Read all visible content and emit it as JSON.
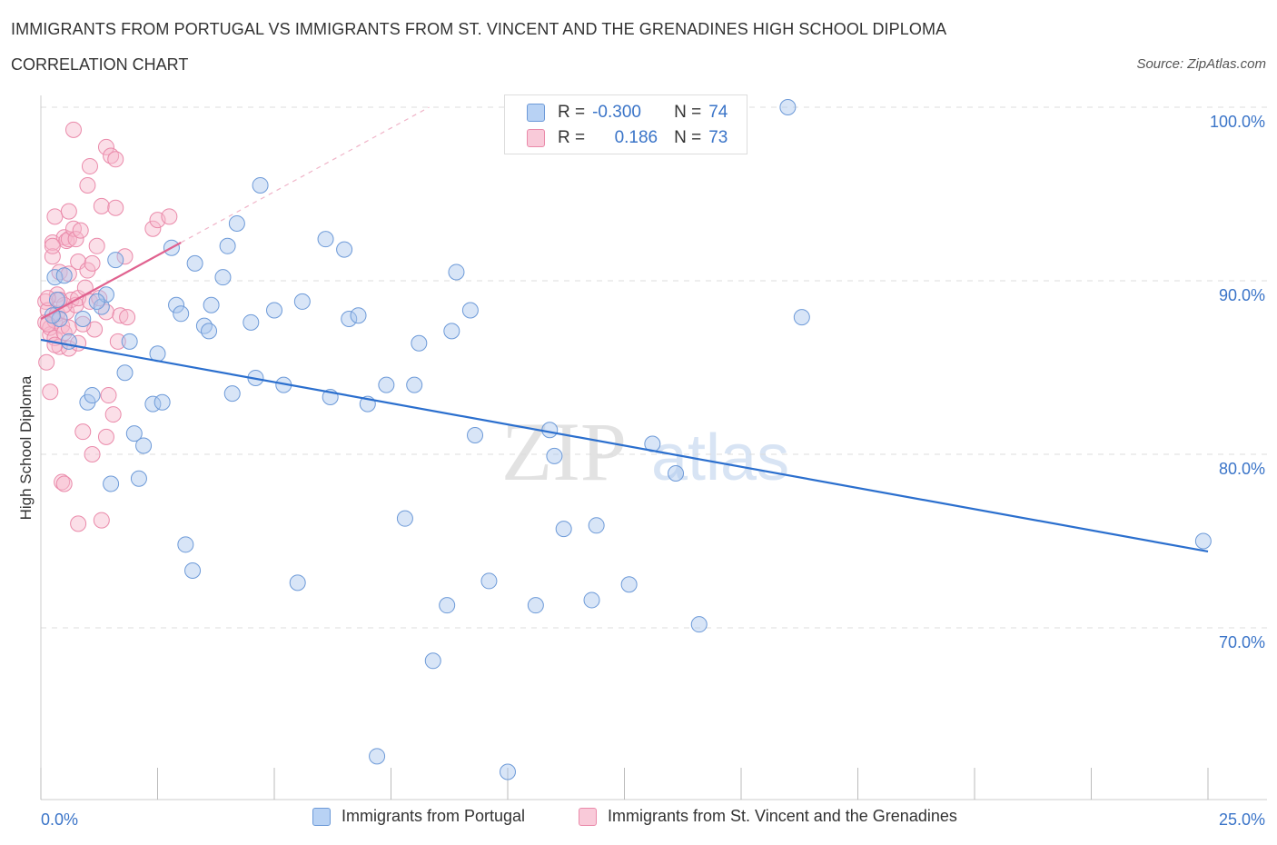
{
  "header": {
    "title": "IMMIGRANTS FROM PORTUGAL VS IMMIGRANTS FROM ST. VINCENT AND THE GRENADINES HIGH SCHOOL DIPLOMA",
    "subtitle": "CORRELATION CHART",
    "source": "Source: ZipAtlas.com"
  },
  "legend": {
    "rows": [
      {
        "r_label": "R =",
        "r_value": "-0.300",
        "n_label": "N =",
        "n_value": "74"
      },
      {
        "r_label": "R =",
        "r_value": "0.186",
        "n_label": "N =",
        "n_value": "73"
      }
    ]
  },
  "bottom_legend": {
    "series1": "Immigrants from Portugal",
    "series2": "Immigrants from St. Vincent and the Grenadines"
  },
  "watermark": {
    "part1": "ZIP",
    "part2": "atlas"
  },
  "colors": {
    "blue_fill": "#a9c6ee",
    "blue_stroke": "#6d9ad8",
    "blue_line": "#2b6fce",
    "pink_fill": "#f6b9cc",
    "pink_stroke": "#ea8aaa",
    "pink_line": "#e0628f",
    "label_blue": "#3a74c8"
  },
  "chart_data": {
    "type": "scatter",
    "xlabel": "",
    "ylabel": "High School Diploma",
    "xlim": [
      0,
      25
    ],
    "ylim": [
      60,
      100
    ],
    "x_tick_labels": [
      "0.0%",
      "25.0%"
    ],
    "y_ticks": [
      70,
      80,
      90,
      100
    ],
    "y_tick_labels": [
      "70.0%",
      "80.0%",
      "90.0%",
      "100.0%"
    ],
    "grid": true,
    "series": [
      {
        "name": "Immigrants from Portugal",
        "color": "#a9c6ee",
        "trend": {
          "x": [
            0,
            25
          ],
          "y": [
            86.6,
            74.4
          ]
        },
        "points": [
          [
            0.3,
            90.2
          ],
          [
            0.35,
            88.9
          ],
          [
            0.4,
            87.8
          ],
          [
            0.9,
            87.8
          ],
          [
            0.5,
            90.3
          ],
          [
            1.0,
            83.0
          ],
          [
            1.1,
            83.4
          ],
          [
            1.3,
            88.5
          ],
          [
            1.4,
            89.2
          ],
          [
            1.6,
            91.2
          ],
          [
            1.8,
            84.7
          ],
          [
            1.9,
            86.5
          ],
          [
            2.0,
            81.2
          ],
          [
            2.1,
            78.6
          ],
          [
            2.2,
            80.5
          ],
          [
            2.4,
            82.9
          ],
          [
            2.5,
            85.8
          ],
          [
            2.6,
            83.0
          ],
          [
            2.8,
            91.9
          ],
          [
            2.9,
            88.6
          ],
          [
            3.0,
            88.1
          ],
          [
            3.1,
            74.8
          ],
          [
            3.25,
            73.3
          ],
          [
            3.3,
            91.0
          ],
          [
            3.5,
            87.4
          ],
          [
            3.6,
            87.1
          ],
          [
            3.65,
            88.6
          ],
          [
            3.9,
            90.2
          ],
          [
            4.0,
            92.0
          ],
          [
            4.1,
            83.5
          ],
          [
            4.2,
            93.3
          ],
          [
            4.5,
            87.6
          ],
          [
            4.6,
            84.4
          ],
          [
            4.7,
            95.5
          ],
          [
            5.0,
            88.3
          ],
          [
            5.2,
            84.0
          ],
          [
            5.5,
            72.6
          ],
          [
            5.6,
            88.8
          ],
          [
            6.1,
            92.4
          ],
          [
            6.2,
            83.3
          ],
          [
            6.5,
            91.8
          ],
          [
            6.6,
            87.8
          ],
          [
            6.8,
            88.0
          ],
          [
            7.0,
            82.9
          ],
          [
            7.2,
            62.6
          ],
          [
            7.4,
            84.0
          ],
          [
            7.8,
            76.3
          ],
          [
            8.0,
            84.0
          ],
          [
            8.1,
            86.4
          ],
          [
            8.4,
            68.1
          ],
          [
            8.7,
            71.3
          ],
          [
            8.8,
            87.1
          ],
          [
            8.9,
            90.5
          ],
          [
            9.2,
            88.3
          ],
          [
            9.3,
            81.1
          ],
          [
            9.6,
            72.7
          ],
          [
            10.0,
            61.7
          ],
          [
            10.6,
            71.3
          ],
          [
            10.9,
            81.4
          ],
          [
            11.0,
            79.9
          ],
          [
            11.2,
            75.7
          ],
          [
            11.8,
            71.6
          ],
          [
            11.9,
            75.9
          ],
          [
            12.6,
            72.5
          ],
          [
            13.1,
            80.6
          ],
          [
            13.6,
            78.9
          ],
          [
            14.1,
            70.2
          ],
          [
            16.0,
            100.0
          ],
          [
            16.3,
            87.9
          ],
          [
            24.9,
            75.0
          ],
          [
            0.25,
            88.0
          ],
          [
            0.6,
            86.5
          ],
          [
            1.5,
            78.3
          ],
          [
            1.2,
            88.8
          ]
        ]
      },
      {
        "name": "Immigrants from St. Vincent and the Grenadines",
        "color": "#f6b9cc",
        "trend": {
          "x": [
            0,
            3.0
          ],
          "y": [
            87.8,
            92.2
          ]
        },
        "points": [
          [
            0.1,
            88.8
          ],
          [
            0.1,
            87.6
          ],
          [
            0.12,
            85.3
          ],
          [
            0.15,
            88.3
          ],
          [
            0.2,
            86.9
          ],
          [
            0.2,
            83.6
          ],
          [
            0.2,
            87.3
          ],
          [
            0.25,
            92.2
          ],
          [
            0.25,
            91.4
          ],
          [
            0.3,
            93.7
          ],
          [
            0.3,
            87.7
          ],
          [
            0.3,
            86.7
          ],
          [
            0.35,
            89.2
          ],
          [
            0.35,
            88.1
          ],
          [
            0.4,
            90.5
          ],
          [
            0.4,
            86.2
          ],
          [
            0.45,
            87.4
          ],
          [
            0.45,
            78.4
          ],
          [
            0.5,
            92.5
          ],
          [
            0.5,
            87.0
          ],
          [
            0.55,
            92.3
          ],
          [
            0.55,
            88.2
          ],
          [
            0.6,
            94.0
          ],
          [
            0.6,
            92.4
          ],
          [
            0.6,
            87.3
          ],
          [
            0.6,
            86.1
          ],
          [
            0.65,
            88.9
          ],
          [
            0.7,
            98.7
          ],
          [
            0.7,
            93.0
          ],
          [
            0.75,
            92.4
          ],
          [
            0.75,
            88.6
          ],
          [
            0.8,
            91.1
          ],
          [
            0.8,
            89.0
          ],
          [
            0.8,
            86.4
          ],
          [
            0.85,
            92.9
          ],
          [
            0.9,
            81.3
          ],
          [
            0.95,
            89.6
          ],
          [
            1.0,
            95.5
          ],
          [
            1.0,
            90.6
          ],
          [
            1.05,
            96.6
          ],
          [
            1.05,
            88.8
          ],
          [
            1.1,
            91.0
          ],
          [
            1.1,
            80.0
          ],
          [
            1.15,
            87.2
          ],
          [
            1.2,
            92.0
          ],
          [
            1.25,
            89.0
          ],
          [
            1.3,
            94.3
          ],
          [
            1.3,
            76.2
          ],
          [
            1.4,
            97.7
          ],
          [
            1.4,
            88.2
          ],
          [
            1.45,
            83.4
          ],
          [
            1.5,
            97.2
          ],
          [
            1.55,
            82.3
          ],
          [
            1.6,
            94.2
          ],
          [
            1.6,
            97.0
          ],
          [
            1.65,
            86.5
          ],
          [
            1.7,
            88.0
          ],
          [
            1.8,
            91.4
          ],
          [
            1.85,
            87.9
          ],
          [
            2.4,
            93.0
          ],
          [
            2.5,
            93.5
          ],
          [
            2.75,
            93.7
          ],
          [
            0.5,
            88.6
          ],
          [
            0.15,
            87.5
          ],
          [
            0.3,
            86.3
          ],
          [
            0.4,
            88.9
          ],
          [
            0.8,
            76.0
          ],
          [
            0.15,
            89.0
          ],
          [
            0.25,
            92.0
          ],
          [
            0.6,
            90.4
          ],
          [
            1.4,
            81.0
          ],
          [
            0.9,
            87.5
          ],
          [
            0.5,
            78.3
          ]
        ]
      }
    ]
  }
}
